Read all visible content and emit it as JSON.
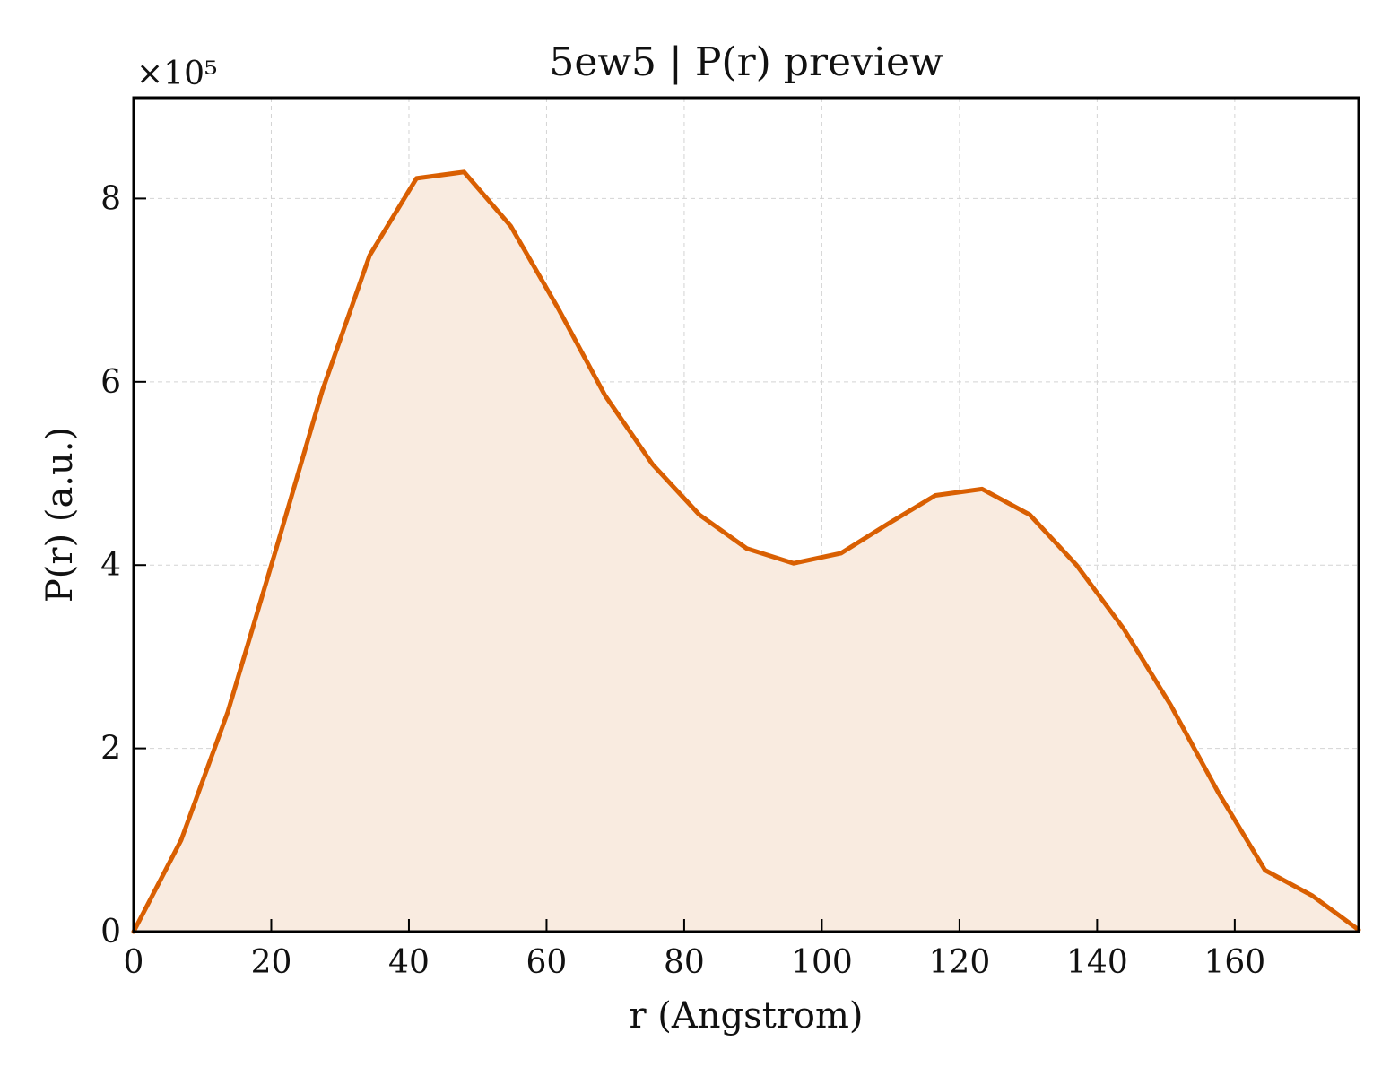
{
  "chart_data": {
    "type": "area",
    "title": "5ew5 | P(r) preview",
    "xlabel": "r (Angstrom)",
    "ylabel": "P(r) (a.u.)",
    "y_multiplier": "×10⁵",
    "xlim": [
      0,
      178
    ],
    "ylim": [
      0,
      9.1
    ],
    "xticks": [
      0,
      20,
      40,
      60,
      80,
      100,
      120,
      140,
      160
    ],
    "yticks": [
      0,
      2,
      4,
      6,
      8
    ],
    "grid": true,
    "line_color": "#d95f02",
    "fill_color": "#f9ebe0",
    "series": [
      {
        "x": [
          0,
          6.9,
          13.7,
          20.6,
          27.4,
          34.3,
          41.1,
          48.0,
          54.8,
          61.7,
          68.5,
          75.4,
          82.2,
          89.1,
          95.9,
          102.8,
          109.6,
          116.5,
          123.3,
          130.2,
          137.0,
          143.9,
          150.7,
          157.6,
          164.4,
          171.3,
          178.0
        ],
        "y": [
          0.0,
          1.0,
          2.4,
          4.15,
          5.9,
          7.38,
          8.22,
          8.29,
          7.7,
          6.8,
          5.85,
          5.1,
          4.55,
          4.18,
          4.02,
          4.13,
          4.45,
          4.76,
          4.83,
          4.55,
          4.0,
          3.3,
          2.47,
          1.52,
          0.67,
          0.39,
          0.02
        ]
      }
    ]
  }
}
